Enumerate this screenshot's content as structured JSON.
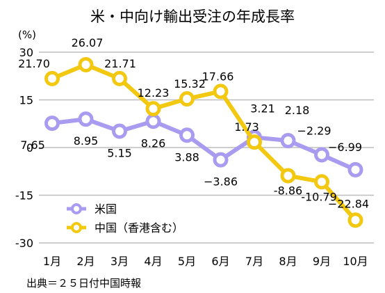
{
  "chart_data": {
    "type": "line",
    "title": "米・中向け輸出受注の年成長率",
    "ylabel": "(%)",
    "xlabel": "",
    "categories": [
      "1月",
      "2月",
      "3月",
      "4月",
      "5月",
      "6月",
      "7月",
      "8月",
      "9月",
      "10月"
    ],
    "ylim": [
      -30,
      30
    ],
    "yticks": [
      30,
      15,
      0,
      -15,
      -30
    ],
    "ytick_labels": [
      "30",
      "15",
      "0",
      "-15",
      "-30"
    ],
    "grid": true,
    "legend_position": "bottom-left",
    "series": [
      {
        "name": "米国",
        "color": "#a99bf0",
        "values": [
          7.65,
          8.95,
          5.15,
          8.26,
          3.88,
          -3.86,
          3.21,
          2.18,
          -2.29,
          -6.99
        ],
        "labels": [
          "7.65",
          "8.95",
          "5.15",
          "8.26",
          "3.88",
          "−3.86",
          "3.21",
          "2.18",
          "−2.29",
          "−6.99"
        ]
      },
      {
        "name": "中国（香港含む）",
        "color": "#f2c811",
        "values": [
          21.7,
          26.07,
          21.71,
          12.23,
          15.32,
          17.66,
          1.73,
          -8.86,
          -10.79,
          -22.84
        ],
        "labels": [
          "21.70",
          "26.07",
          "21.71",
          "12.23",
          "15.32",
          "17.66",
          "1.73",
          "-8.86",
          "-10.79",
          "−22.84"
        ]
      }
    ],
    "source": "出典＝２５日付中国時報"
  }
}
